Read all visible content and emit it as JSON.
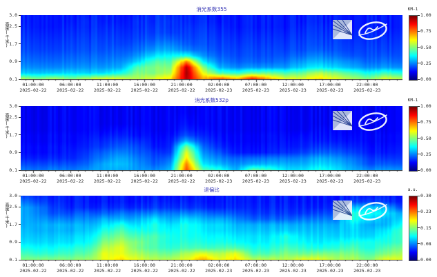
{
  "colors": {
    "title": "#3939b6",
    "axis_text": "#222222",
    "plot_background_low": "#0b2fd6",
    "colormap": "jet"
  },
  "x_axis": {
    "ticks": [
      {
        "time": "01:00:00",
        "date": "2025-02-22"
      },
      {
        "time": "06:00:00",
        "date": "2025-02-22"
      },
      {
        "time": "11:00:00",
        "date": "2025-02-22"
      },
      {
        "time": "16:00:00",
        "date": "2025-02-22"
      },
      {
        "time": "21:00:00",
        "date": "2025-02-22"
      },
      {
        "time": "02:00:00",
        "date": "2025-02-23"
      },
      {
        "time": "07:00:00",
        "date": "2025-02-23"
      },
      {
        "time": "12:00:00",
        "date": "2025-02-23"
      },
      {
        "time": "17:00:00",
        "date": "2025-02-23"
      },
      {
        "time": "22:00:00",
        "date": "2025-02-23"
      }
    ],
    "minor_tick_interval_hours": 1,
    "major_tick_interval_hours": 5
  },
  "panels": [
    {
      "title": "消光系数355",
      "ylabel": "高度(千米)",
      "yticks": [
        "3.0",
        "2.5",
        "1.7",
        "0.9",
        "0.1"
      ],
      "ytick_values": [
        3.0,
        2.5,
        1.7,
        0.9,
        0.1
      ],
      "ylim": [
        0.1,
        3.0
      ],
      "colorbar": {
        "unit": "KM-1",
        "ticks": [
          "1.00",
          "0.75",
          "0.50",
          "0.25",
          "0.00"
        ]
      }
    },
    {
      "title": "消光系数532p",
      "ylabel": "高度(千米)",
      "yticks": [
        "3.0",
        "2.5",
        "1.7",
        "0.9",
        "0.1"
      ],
      "ytick_values": [
        3.0,
        2.5,
        1.7,
        0.9,
        0.1
      ],
      "ylim": [
        0.1,
        3.0
      ],
      "colorbar": {
        "unit": "KM-1",
        "ticks": [
          "1.00",
          "0.75",
          "0.50",
          "0.25",
          "0.00"
        ]
      }
    },
    {
      "title": "退偏比",
      "ylabel": "高度(千米)",
      "yticks": [
        "3.0",
        "2.5",
        "1.7",
        "0.9",
        "0.1"
      ],
      "ytick_values": [
        3.0,
        2.5,
        1.7,
        0.9,
        0.1
      ],
      "ylim": [
        0.1,
        3.0
      ],
      "colorbar": {
        "unit": "a.u.",
        "ticks": [
          "0.30",
          "0.23",
          "0.15",
          "0.08",
          "0.00"
        ]
      }
    }
  ],
  "chart_data": [
    {
      "type": "heatmap",
      "title": "消光系数355",
      "xlabel": "time (2025-02-22 01:00:00 → 2025-02-23 22:00:00)",
      "ylabel": "高度(千米)",
      "ylim_km": [
        0.1,
        3.0
      ],
      "colorbar_unit": "KM-1",
      "colorbar_range": [
        0.0,
        1.0
      ],
      "grid_note": "rows top(3.0km)→bottom(0.1km), 24 time columns, values normalized to colorbar max",
      "grid": [
        [
          0.15,
          0.15,
          0.15,
          0.15,
          0.15,
          0.16,
          0.16,
          0.16,
          0.17,
          0.17,
          0.17,
          0.16,
          0.15,
          0.15,
          0.15,
          0.15,
          0.15,
          0.15,
          0.15,
          0.15,
          0.15,
          0.15,
          0.15,
          0.15
        ],
        [
          0.15,
          0.15,
          0.15,
          0.15,
          0.16,
          0.16,
          0.16,
          0.17,
          0.17,
          0.18,
          0.17,
          0.16,
          0.15,
          0.15,
          0.15,
          0.15,
          0.15,
          0.15,
          0.15,
          0.15,
          0.15,
          0.15,
          0.15,
          0.15
        ],
        [
          0.16,
          0.15,
          0.15,
          0.16,
          0.16,
          0.17,
          0.17,
          0.17,
          0.18,
          0.18,
          0.18,
          0.17,
          0.16,
          0.15,
          0.15,
          0.15,
          0.15,
          0.16,
          0.16,
          0.16,
          0.15,
          0.15,
          0.15,
          0.15
        ],
        [
          0.17,
          0.16,
          0.16,
          0.17,
          0.17,
          0.18,
          0.18,
          0.18,
          0.19,
          0.19,
          0.19,
          0.18,
          0.17,
          0.16,
          0.16,
          0.16,
          0.16,
          0.17,
          0.17,
          0.17,
          0.16,
          0.16,
          0.16,
          0.16
        ],
        [
          0.18,
          0.17,
          0.17,
          0.18,
          0.18,
          0.19,
          0.19,
          0.19,
          0.21,
          0.22,
          0.2,
          0.19,
          0.18,
          0.17,
          0.17,
          0.17,
          0.17,
          0.18,
          0.18,
          0.18,
          0.17,
          0.17,
          0.17,
          0.17
        ],
        [
          0.19,
          0.18,
          0.18,
          0.19,
          0.19,
          0.2,
          0.2,
          0.21,
          0.24,
          0.26,
          0.22,
          0.2,
          0.19,
          0.18,
          0.18,
          0.18,
          0.18,
          0.19,
          0.19,
          0.19,
          0.18,
          0.18,
          0.18,
          0.18
        ],
        [
          0.2,
          0.19,
          0.19,
          0.2,
          0.2,
          0.21,
          0.22,
          0.23,
          0.28,
          0.3,
          0.26,
          0.22,
          0.2,
          0.19,
          0.19,
          0.19,
          0.19,
          0.2,
          0.21,
          0.2,
          0.19,
          0.19,
          0.19,
          0.19
        ],
        [
          0.22,
          0.21,
          0.21,
          0.22,
          0.22,
          0.23,
          0.24,
          0.27,
          0.35,
          0.38,
          0.4,
          0.26,
          0.22,
          0.2,
          0.2,
          0.2,
          0.21,
          0.23,
          0.25,
          0.23,
          0.21,
          0.2,
          0.21,
          0.2
        ],
        [
          0.24,
          0.23,
          0.23,
          0.24,
          0.24,
          0.25,
          0.27,
          0.33,
          0.45,
          0.45,
          0.75,
          0.35,
          0.25,
          0.22,
          0.22,
          0.22,
          0.24,
          0.28,
          0.3,
          0.28,
          0.26,
          0.22,
          0.24,
          0.22
        ],
        [
          0.27,
          0.26,
          0.26,
          0.27,
          0.27,
          0.28,
          0.3,
          0.45,
          0.5,
          0.5,
          0.95,
          0.5,
          0.3,
          0.26,
          0.27,
          0.27,
          0.28,
          0.33,
          0.36,
          0.33,
          0.3,
          0.26,
          0.28,
          0.26
        ],
        [
          0.33,
          0.32,
          0.33,
          0.34,
          0.33,
          0.35,
          0.4,
          0.5,
          0.5,
          0.55,
          0.97,
          0.6,
          0.45,
          0.42,
          0.48,
          0.48,
          0.45,
          0.48,
          0.55,
          0.5,
          0.45,
          0.38,
          0.44,
          0.4
        ],
        [
          0.55,
          0.5,
          0.55,
          0.5,
          0.55,
          0.6,
          0.6,
          0.55,
          0.6,
          0.65,
          0.95,
          0.7,
          0.8,
          0.7,
          0.85,
          0.7,
          0.6,
          0.6,
          0.65,
          0.6,
          0.55,
          0.5,
          0.6,
          0.55
        ]
      ]
    },
    {
      "type": "heatmap",
      "title": "消光系数532p",
      "xlabel": "time (2025-02-22 01:00:00 → 2025-02-23 22:00:00)",
      "ylabel": "高度(千米)",
      "ylim_km": [
        0.1,
        3.0
      ],
      "colorbar_unit": "KM-1",
      "colorbar_range": [
        0.0,
        1.0
      ],
      "grid_note": "rows top(3.0km)→bottom(0.1km), 24 time columns, values normalized to colorbar max",
      "grid": [
        [
          0.12,
          0.12,
          0.12,
          0.12,
          0.12,
          0.12,
          0.12,
          0.12,
          0.12,
          0.12,
          0.12,
          0.12,
          0.12,
          0.12,
          0.12,
          0.12,
          0.12,
          0.12,
          0.12,
          0.12,
          0.12,
          0.12,
          0.12,
          0.12
        ],
        [
          0.12,
          0.12,
          0.12,
          0.12,
          0.12,
          0.12,
          0.12,
          0.12,
          0.12,
          0.12,
          0.12,
          0.12,
          0.12,
          0.12,
          0.12,
          0.12,
          0.12,
          0.12,
          0.12,
          0.12,
          0.12,
          0.12,
          0.12,
          0.12
        ],
        [
          0.12,
          0.12,
          0.12,
          0.12,
          0.12,
          0.12,
          0.12,
          0.12,
          0.12,
          0.12,
          0.13,
          0.12,
          0.12,
          0.12,
          0.12,
          0.12,
          0.12,
          0.12,
          0.12,
          0.12,
          0.12,
          0.12,
          0.12,
          0.12
        ],
        [
          0.12,
          0.12,
          0.12,
          0.12,
          0.12,
          0.12,
          0.12,
          0.12,
          0.12,
          0.12,
          0.14,
          0.12,
          0.12,
          0.12,
          0.12,
          0.12,
          0.12,
          0.12,
          0.12,
          0.12,
          0.12,
          0.12,
          0.12,
          0.12
        ],
        [
          0.12,
          0.12,
          0.12,
          0.12,
          0.12,
          0.13,
          0.14,
          0.13,
          0.12,
          0.12,
          0.16,
          0.13,
          0.12,
          0.12,
          0.12,
          0.12,
          0.12,
          0.12,
          0.13,
          0.13,
          0.12,
          0.12,
          0.12,
          0.12
        ],
        [
          0.13,
          0.13,
          0.13,
          0.13,
          0.13,
          0.15,
          0.16,
          0.14,
          0.13,
          0.13,
          0.2,
          0.15,
          0.13,
          0.13,
          0.13,
          0.13,
          0.13,
          0.14,
          0.14,
          0.14,
          0.13,
          0.13,
          0.13,
          0.13
        ],
        [
          0.13,
          0.13,
          0.13,
          0.13,
          0.14,
          0.17,
          0.19,
          0.17,
          0.14,
          0.14,
          0.3,
          0.18,
          0.14,
          0.13,
          0.13,
          0.13,
          0.14,
          0.15,
          0.15,
          0.15,
          0.14,
          0.13,
          0.13,
          0.13
        ],
        [
          0.14,
          0.14,
          0.14,
          0.14,
          0.15,
          0.19,
          0.22,
          0.2,
          0.15,
          0.15,
          0.5,
          0.22,
          0.16,
          0.14,
          0.14,
          0.14,
          0.15,
          0.16,
          0.18,
          0.18,
          0.16,
          0.14,
          0.14,
          0.14
        ],
        [
          0.14,
          0.14,
          0.14,
          0.15,
          0.17,
          0.23,
          0.26,
          0.22,
          0.18,
          0.17,
          0.6,
          0.26,
          0.2,
          0.15,
          0.15,
          0.15,
          0.17,
          0.19,
          0.22,
          0.22,
          0.19,
          0.15,
          0.15,
          0.15
        ],
        [
          0.16,
          0.16,
          0.16,
          0.16,
          0.19,
          0.26,
          0.3,
          0.25,
          0.2,
          0.22,
          0.65,
          0.3,
          0.25,
          0.22,
          0.24,
          0.24,
          0.25,
          0.26,
          0.3,
          0.28,
          0.24,
          0.18,
          0.18,
          0.17
        ],
        [
          0.2,
          0.2,
          0.2,
          0.2,
          0.22,
          0.3,
          0.32,
          0.27,
          0.22,
          0.26,
          0.75,
          0.35,
          0.3,
          0.26,
          0.3,
          0.3,
          0.3,
          0.3,
          0.34,
          0.32,
          0.27,
          0.2,
          0.22,
          0.2
        ],
        [
          0.25,
          0.24,
          0.25,
          0.24,
          0.26,
          0.3,
          0.3,
          0.28,
          0.26,
          0.3,
          0.8,
          0.45,
          0.4,
          0.3,
          0.48,
          0.42,
          0.35,
          0.35,
          0.4,
          0.36,
          0.3,
          0.26,
          0.28,
          0.26
        ]
      ]
    },
    {
      "type": "heatmap",
      "title": "退偏比",
      "xlabel": "time (2025-02-22 01:00:00 → 2025-02-23 22:00:00)",
      "ylabel": "高度(千米)",
      "ylim_km": [
        0.1,
        3.0
      ],
      "colorbar_unit": "a.u.",
      "colorbar_range": [
        0.0,
        0.3
      ],
      "grid_note": "rows top(3.0km)→bottom(0.1km), 24 time columns, values normalized to colorbar max",
      "grid": [
        [
          0.2,
          0.17,
          0.15,
          0.15,
          0.15,
          0.15,
          0.15,
          0.15,
          0.15,
          0.15,
          0.15,
          0.15,
          0.15,
          0.15,
          0.15,
          0.15,
          0.15,
          0.15,
          0.15,
          0.15,
          0.16,
          0.16,
          0.16,
          0.15
        ],
        [
          0.25,
          0.2,
          0.16,
          0.15,
          0.15,
          0.15,
          0.15,
          0.15,
          0.16,
          0.16,
          0.16,
          0.15,
          0.15,
          0.15,
          0.15,
          0.15,
          0.15,
          0.15,
          0.15,
          0.15,
          0.18,
          0.2,
          0.18,
          0.16
        ],
        [
          0.3,
          0.25,
          0.18,
          0.16,
          0.16,
          0.17,
          0.17,
          0.17,
          0.18,
          0.18,
          0.18,
          0.17,
          0.16,
          0.16,
          0.16,
          0.16,
          0.16,
          0.16,
          0.16,
          0.17,
          0.3,
          0.35,
          0.3,
          0.2
        ],
        [
          0.3,
          0.26,
          0.2,
          0.2,
          0.22,
          0.22,
          0.24,
          0.24,
          0.26,
          0.25,
          0.26,
          0.24,
          0.22,
          0.2,
          0.18,
          0.18,
          0.18,
          0.18,
          0.2,
          0.2,
          0.4,
          0.4,
          0.35,
          0.3
        ],
        [
          0.3,
          0.28,
          0.25,
          0.25,
          0.26,
          0.3,
          0.3,
          0.3,
          0.35,
          0.3,
          0.35,
          0.3,
          0.3,
          0.25,
          0.22,
          0.22,
          0.22,
          0.24,
          0.25,
          0.25,
          0.4,
          0.35,
          0.3,
          0.35
        ],
        [
          0.3,
          0.3,
          0.3,
          0.3,
          0.3,
          0.35,
          0.4,
          0.35,
          0.4,
          0.35,
          0.4,
          0.35,
          0.35,
          0.3,
          0.3,
          0.3,
          0.3,
          0.3,
          0.3,
          0.3,
          0.35,
          0.3,
          0.3,
          0.4
        ],
        [
          0.32,
          0.3,
          0.3,
          0.3,
          0.32,
          0.4,
          0.45,
          0.4,
          0.4,
          0.38,
          0.4,
          0.36,
          0.35,
          0.32,
          0.32,
          0.32,
          0.33,
          0.32,
          0.32,
          0.32,
          0.34,
          0.32,
          0.35,
          0.45
        ],
        [
          0.33,
          0.32,
          0.32,
          0.33,
          0.35,
          0.45,
          0.5,
          0.45,
          0.45,
          0.4,
          0.4,
          0.38,
          0.38,
          0.35,
          0.35,
          0.35,
          0.4,
          0.35,
          0.34,
          0.34,
          0.35,
          0.34,
          0.38,
          0.45
        ],
        [
          0.35,
          0.34,
          0.34,
          0.35,
          0.37,
          0.5,
          0.55,
          0.5,
          0.45,
          0.4,
          0.42,
          0.4,
          0.4,
          0.38,
          0.36,
          0.37,
          0.4,
          0.38,
          0.36,
          0.38,
          0.4,
          0.4,
          0.4,
          0.45
        ],
        [
          0.4,
          0.38,
          0.38,
          0.4,
          0.42,
          0.55,
          0.6,
          0.5,
          0.45,
          0.42,
          0.45,
          0.44,
          0.45,
          0.45,
          0.4,
          0.4,
          0.45,
          0.42,
          0.4,
          0.42,
          0.45,
          0.4,
          0.45,
          0.5
        ],
        [
          0.45,
          0.42,
          0.42,
          0.44,
          0.46,
          0.6,
          0.6,
          0.55,
          0.5,
          0.48,
          0.55,
          0.6,
          0.55,
          0.6,
          0.45,
          0.45,
          0.5,
          0.48,
          0.5,
          0.5,
          0.5,
          0.45,
          0.5,
          0.55
        ],
        [
          0.5,
          0.5,
          0.5,
          0.5,
          0.52,
          0.6,
          0.65,
          0.6,
          0.55,
          0.55,
          0.6,
          0.7,
          0.6,
          0.65,
          0.55,
          0.55,
          0.55,
          0.6,
          0.6,
          0.55,
          0.55,
          0.5,
          0.6,
          0.6
        ]
      ]
    }
  ]
}
